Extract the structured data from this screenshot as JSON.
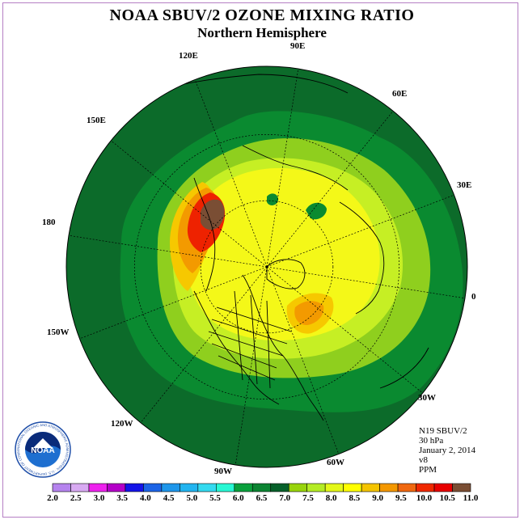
{
  "title": "NOAA SBUV/2 OZONE MIXING RATIO",
  "subtitle": "Northern Hemisphere",
  "logo": {
    "text": "NOAA",
    "ring_text": "NATIONAL OCEANIC AND ATMOSPHERIC ADMINISTRATION · U.S. DEPARTMENT OF COMMERCE"
  },
  "longitude_labels": [
    "90E",
    "120E",
    "60E",
    "150E",
    "30E",
    "180",
    "0",
    "150W",
    "30W",
    "120W",
    "60W",
    "90W"
  ],
  "meta": [
    "N19 SBUV/2",
    "30 hPa",
    "January 2, 2014",
    "v8",
    "PPM"
  ],
  "legend": {
    "colors": [
      "#b583ee",
      "#d8aaf2",
      "#ee22ee",
      "#b400c8",
      "#1414e8",
      "#1c64e6",
      "#1e96ea",
      "#22b4f0",
      "#34daf0",
      "#28f8d4",
      "#0aa03c",
      "#0c8432",
      "#06602a",
      "#98d40c",
      "#b4ec24",
      "#e4f818",
      "#ffff00",
      "#f4c400",
      "#f49800",
      "#f06810",
      "#f02800",
      "#e80000",
      "#7a4e34"
    ],
    "ticks": [
      "2.0",
      "2.5",
      "3.0",
      "3.5",
      "4.0",
      "4.5",
      "5.0",
      "5.5",
      "6.0",
      "6.5",
      "7.0",
      "7.5",
      "8.0",
      "8.5",
      "9.0",
      "9.5",
      "10.0",
      "10.5",
      "11.0"
    ]
  },
  "map_colors": {
    "band_outer": "#0c6b2a",
    "band_green": "#0a8a30",
    "band_lime": "#8fcf1e",
    "band_ylgreen": "#c6ef24",
    "band_yellow": "#f4f818",
    "band_gold": "#f6c800",
    "band_orange": "#f39a00",
    "band_red": "#ee2200",
    "band_brown": "#7a4e34",
    "coast": "#000000",
    "grid": "#000000"
  }
}
